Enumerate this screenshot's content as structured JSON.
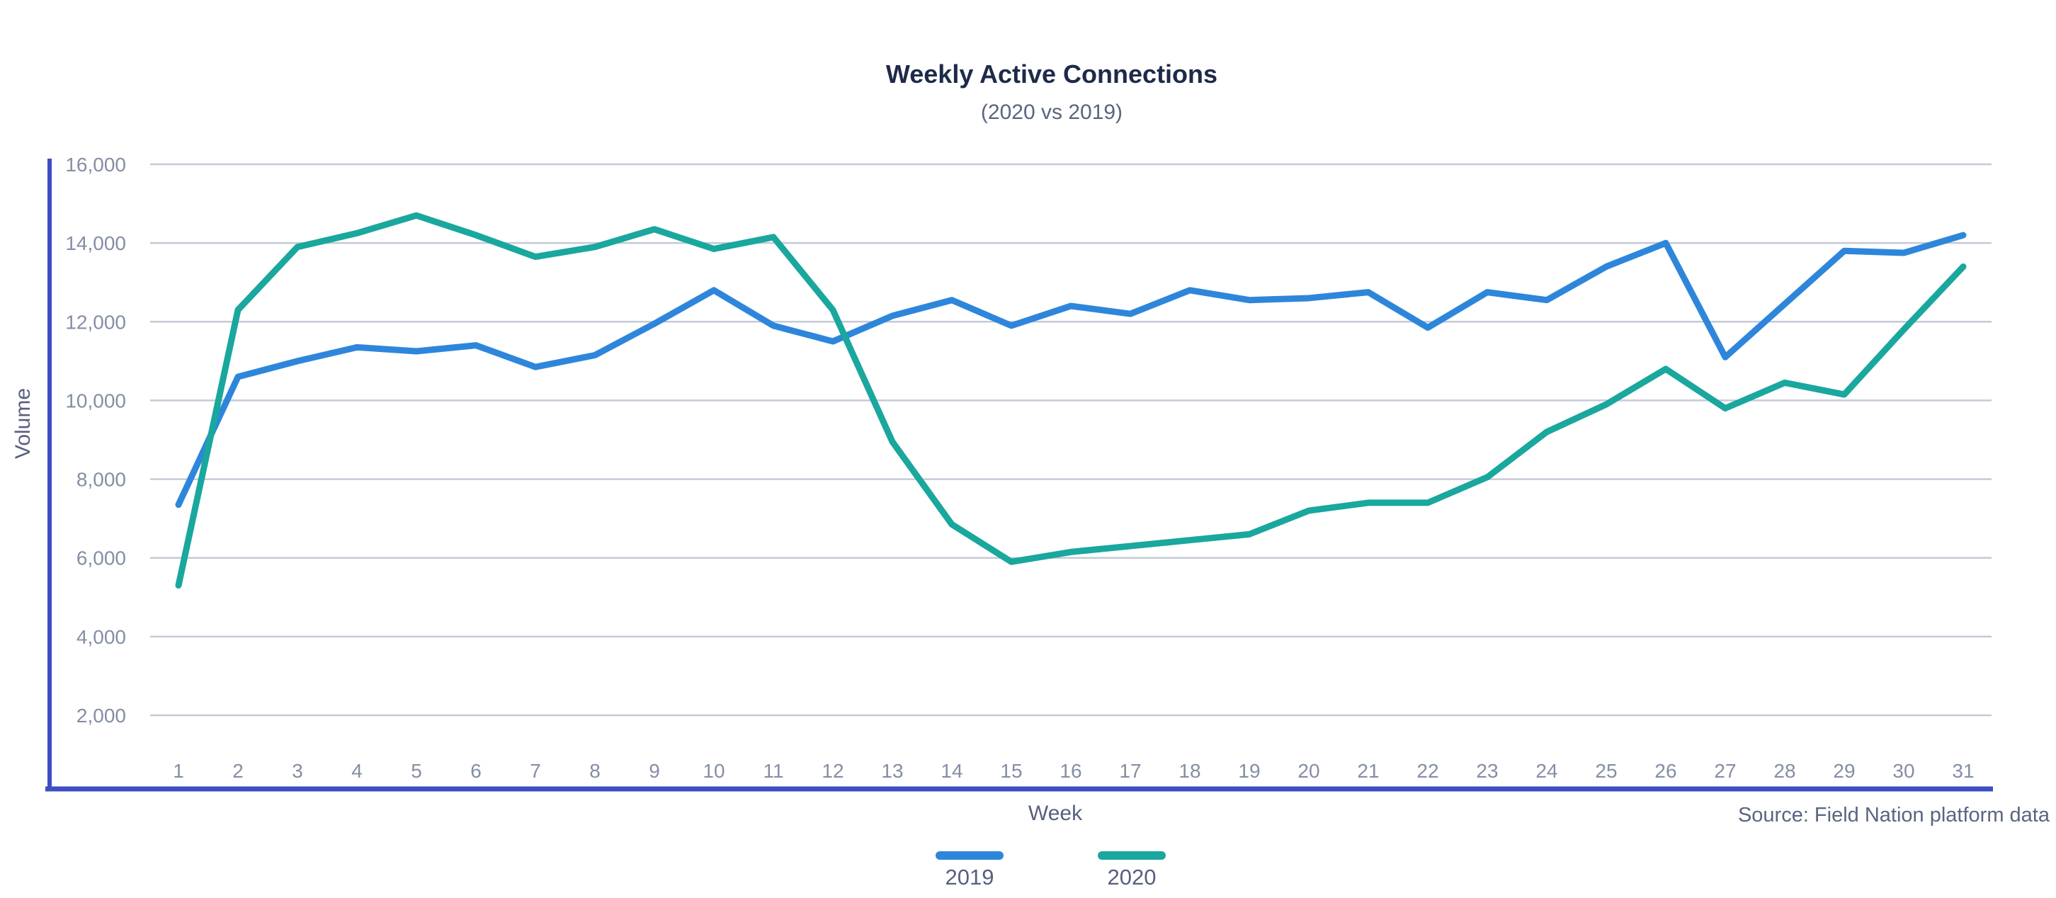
{
  "title": "Weekly Active Connections",
  "subtitle": "(2020 vs 2019)",
  "source_note": "Source: Field Nation platform data",
  "colors": {
    "title": "#1E2A4A",
    "subtitle": "#5B6480",
    "tick_label": "#848EA4",
    "axis_label": "#575F7E",
    "source": "#5B6480",
    "gridline": "#C5CAD6",
    "axis_line": "#3C4EC2",
    "series_2019": "#2E86DB",
    "series_2020": "#19A79E",
    "background": "#FFFFFF"
  },
  "chart_data": {
    "type": "line",
    "title": "Weekly Active Connections",
    "subtitle": "(2020 vs 2019)",
    "xlabel": "Week",
    "ylabel": "Volume",
    "x": [
      1,
      2,
      3,
      4,
      5,
      6,
      7,
      8,
      9,
      10,
      11,
      12,
      13,
      14,
      15,
      16,
      17,
      18,
      19,
      20,
      21,
      22,
      23,
      24,
      25,
      26,
      27,
      28,
      29,
      30,
      31
    ],
    "series": [
      {
        "name": "2019",
        "color": "#2E86DB",
        "values": [
          7350,
          10600,
          11000,
          11350,
          11250,
          11400,
          10850,
          11150,
          11950,
          12800,
          11900,
          11500,
          12150,
          12550,
          11900,
          12400,
          12200,
          12800,
          12550,
          12600,
          12750,
          11850,
          12750,
          12550,
          13400,
          14000,
          11100,
          12450,
          13800,
          13750,
          14200
        ]
      },
      {
        "name": "2020",
        "color": "#19A79E",
        "values": [
          5300,
          12300,
          13900,
          14250,
          14700,
          14200,
          13650,
          13900,
          14350,
          13850,
          14150,
          12300,
          8950,
          6850,
          5900,
          6150,
          6300,
          6450,
          6600,
          7200,
          7400,
          7400,
          8050,
          9200,
          9900,
          10800,
          9800,
          10450,
          10150,
          11800,
          13400
        ]
      }
    ],
    "yticks": [
      2000,
      4000,
      6000,
      8000,
      10000,
      12000,
      14000,
      16000
    ],
    "ylim": [
      0,
      16000
    ],
    "grid": true,
    "legend_position": "bottom"
  }
}
